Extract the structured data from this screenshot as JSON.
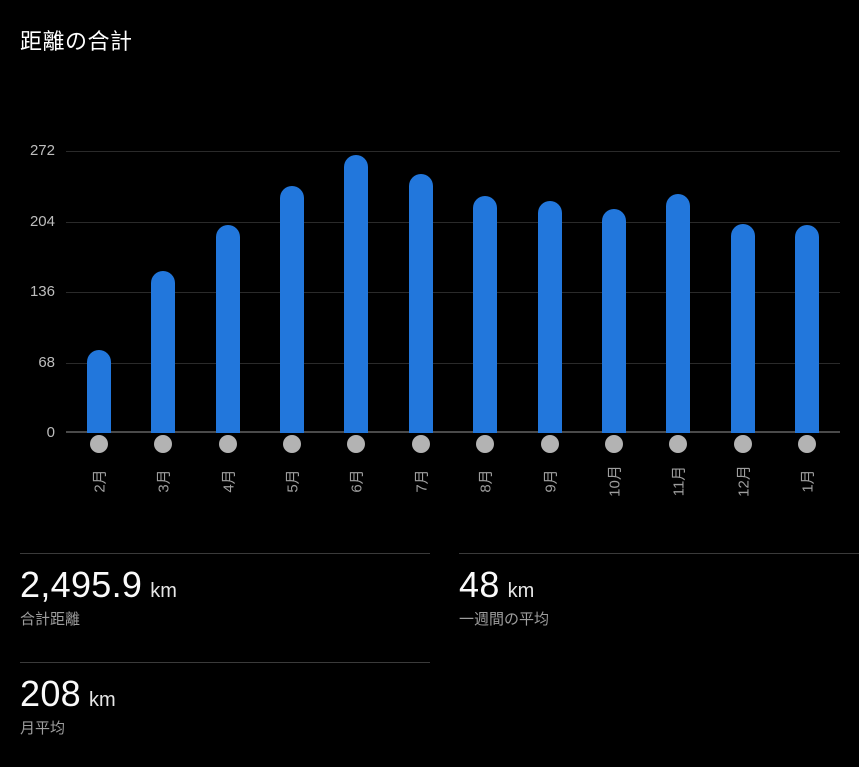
{
  "title": "距離の合計",
  "colors": {
    "background": "#000000",
    "title": "#ffffff",
    "bar": "#2277dc",
    "gridline": "#2a2a2a",
    "zero_line": "#4a4a4a",
    "ytick_label": "#bdbdbd",
    "xtick_label": "#9e9e9e",
    "dot": "#b3b3b3",
    "divider": "#3a3a3a",
    "stat_value": "#fafafa",
    "stat_unit": "#e6e6e6",
    "stat_label": "#9e9e9e"
  },
  "chart_data": {
    "type": "bar",
    "title": "距離の合計",
    "unit": "km",
    "categories": [
      "2月",
      "3月",
      "4月",
      "5月",
      "6月",
      "7月",
      "8月",
      "9月",
      "10月",
      "11月",
      "12月",
      "1月"
    ],
    "values": [
      80,
      156,
      201,
      238,
      268,
      250,
      229,
      224,
      216,
      231,
      202,
      201
    ],
    "yticks": [
      0,
      68,
      136,
      204,
      272
    ],
    "ylim": [
      0,
      272
    ],
    "xlabel": "",
    "ylabel": "",
    "grid": true,
    "legend": "none",
    "x_axis_marker": "dot",
    "xtick_rotation": -90
  },
  "stats": [
    {
      "value": "2,495.9",
      "unit": "km",
      "label": "合計距離"
    },
    {
      "value": "48",
      "unit": "km",
      "label": "一週間の平均"
    },
    {
      "value": "208",
      "unit": "km",
      "label": "月平均"
    }
  ]
}
